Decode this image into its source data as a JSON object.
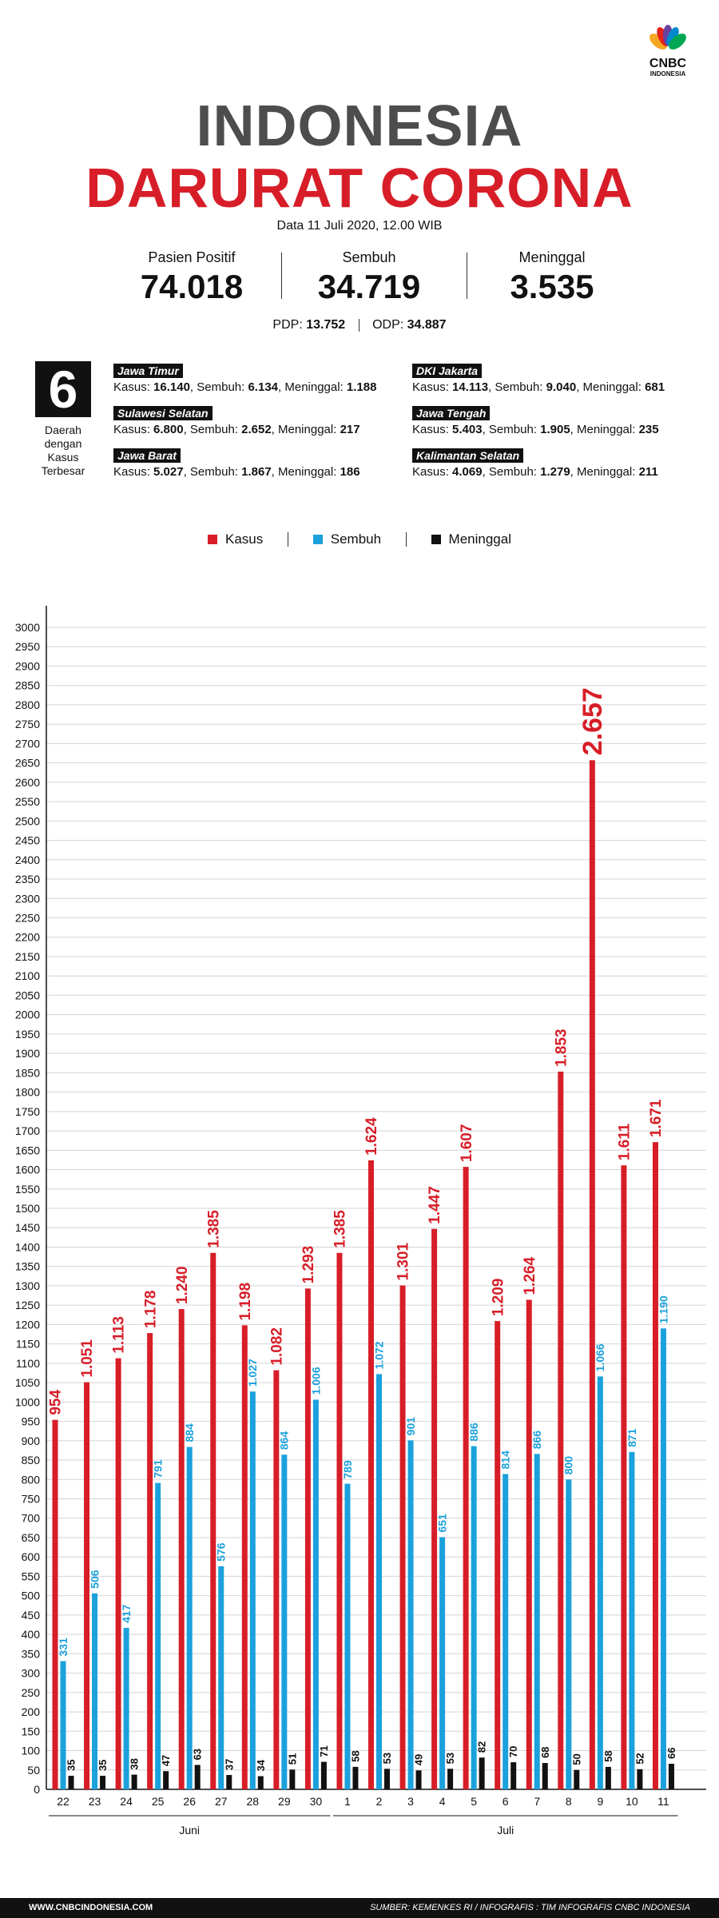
{
  "logo": {
    "brand": "CNBC",
    "sub": "INDONESIA"
  },
  "title": {
    "line1": "INDONESIA",
    "line2": "DARURAT CORONA"
  },
  "date": "Data 11 Juli 2020, 12.00 WIB",
  "stats": [
    {
      "label": "Pasien Positif",
      "value": "74.018"
    },
    {
      "label": "Sembuh",
      "value": "34.719"
    },
    {
      "label": "Meninggal",
      "value": "3.535"
    }
  ],
  "pdp": {
    "label": "PDP:",
    "value": "13.752"
  },
  "odp": {
    "label": "ODP:",
    "value": "34.887"
  },
  "regions_summary": {
    "count": "6",
    "caption": "Daerah dengan Kasus Terbesar"
  },
  "regions": [
    {
      "name": "Jawa Timur",
      "k_label": "Kasus:",
      "kasus": "16.140",
      "s_label": ", Sembuh:",
      "sembuh": "6.134",
      "m_label": ", Meninggal:",
      "meninggal": "1.188"
    },
    {
      "name": "Sulawesi Selatan",
      "k_label": "Kasus:",
      "kasus": "6.800",
      "s_label": ", Sembuh:",
      "sembuh": "2.652",
      "m_label": ", Meninggal:",
      "meninggal": "217"
    },
    {
      "name": "Jawa Barat",
      "k_label": "Kasus:",
      "kasus": "5.027",
      "s_label": ", Sembuh:",
      "sembuh": "1.867",
      "m_label": ", Meninggal:",
      "meninggal": "186"
    },
    {
      "name": "DKI Jakarta",
      "k_label": "Kasus:",
      "kasus": "14.113",
      "s_label": ", Sembuh:",
      "sembuh": "9.040",
      "m_label": ", Meninggal:",
      "meninggal": "681"
    },
    {
      "name": "Jawa Tengah",
      "k_label": "Kasus:",
      "kasus": "5.403",
      "s_label": ", Sembuh:",
      "sembuh": "1.905",
      "m_label": ",  Meninggal:",
      "meninggal": "235"
    },
    {
      "name": "Kalimantan Selatan",
      "k_label": "Kasus:",
      "kasus": "4.069",
      "s_label": ", Sembuh:",
      "sembuh": "1.279",
      "m_label": ", Meninggal:",
      "meninggal": "211"
    }
  ],
  "colors": {
    "kasus": "#d71e28",
    "sembuh": "#1ba1dc",
    "meninggal": "#111111"
  },
  "chart_data": {
    "type": "bar",
    "title": "",
    "xlabel": "",
    "ylabel": "",
    "ylim": [
      0,
      3000
    ],
    "yticks": [
      0,
      50,
      100,
      150,
      200,
      250,
      300,
      350,
      400,
      450,
      500,
      550,
      600,
      650,
      700,
      750,
      800,
      850,
      900,
      950,
      1000,
      1050,
      1100,
      1150,
      1200,
      1250,
      1300,
      1350,
      1400,
      1450,
      1500,
      1550,
      1600,
      1650,
      1700,
      1750,
      1800,
      1850,
      1900,
      1950,
      2000,
      2050,
      2100,
      2150,
      2200,
      2250,
      2300,
      2350,
      2400,
      2450,
      2500,
      2550,
      2600,
      2650,
      2700,
      2750,
      2800,
      2850,
      2900,
      2950,
      3000
    ],
    "categories": [
      "22",
      "23",
      "24",
      "25",
      "26",
      "27",
      "28",
      "29",
      "30",
      "1",
      "2",
      "3",
      "4",
      "5",
      "6",
      "7",
      "8",
      "9",
      "10",
      "11"
    ],
    "month_groups": [
      {
        "label": "Juni",
        "from": 0,
        "to": 8
      },
      {
        "label": "Juli",
        "from": 9,
        "to": 19
      }
    ],
    "legend": [
      "Kasus",
      "Sembuh",
      "Meninggal"
    ],
    "series": [
      {
        "name": "Kasus",
        "values": [
          954,
          1051,
          1113,
          1178,
          1240,
          1385,
          1198,
          1082,
          1293,
          1385,
          1624,
          1301,
          1447,
          1607,
          1209,
          1264,
          1853,
          2657,
          1611,
          1671
        ],
        "labels": [
          "954",
          "1.051",
          "1.113",
          "1.178",
          "1.240",
          "1.385",
          "1.198",
          "1.082",
          "1.293",
          "1.385",
          "1.624",
          "1.301",
          "1.447",
          "1.607",
          "1.209",
          "1.264",
          "1.853",
          "2.657",
          "1.611",
          "1.671"
        ]
      },
      {
        "name": "Sembuh",
        "values": [
          331,
          506,
          417,
          791,
          884,
          576,
          1027,
          864,
          1006,
          789,
          1072,
          901,
          651,
          886,
          814,
          866,
          800,
          1066,
          871,
          1190
        ],
        "labels": [
          "331",
          "506",
          "417",
          "791",
          "884",
          "576",
          "1.027",
          "864",
          "1.006",
          "789",
          "1.072",
          "901",
          "651",
          "886",
          "814",
          "866",
          "800",
          "1.066",
          "871",
          "1.190"
        ]
      },
      {
        "name": "Meninggal",
        "values": [
          35,
          35,
          38,
          47,
          63,
          37,
          34,
          51,
          71,
          58,
          53,
          49,
          53,
          82,
          70,
          68,
          50,
          58,
          52,
          66
        ],
        "labels": [
          "35",
          "35",
          "38",
          "47",
          "63",
          "37",
          "34",
          "51",
          "71",
          "58",
          "53",
          "49",
          "53",
          "82",
          "70",
          "68",
          "50",
          "58",
          "52",
          "66"
        ]
      }
    ]
  },
  "footer": {
    "left": "WWW.CNBCINDONESIA.COM",
    "right": "SUMBER: KEMENKES RI / INFOGRAFIS : TIM INFOGRAFIS CNBC INDONESIA"
  }
}
